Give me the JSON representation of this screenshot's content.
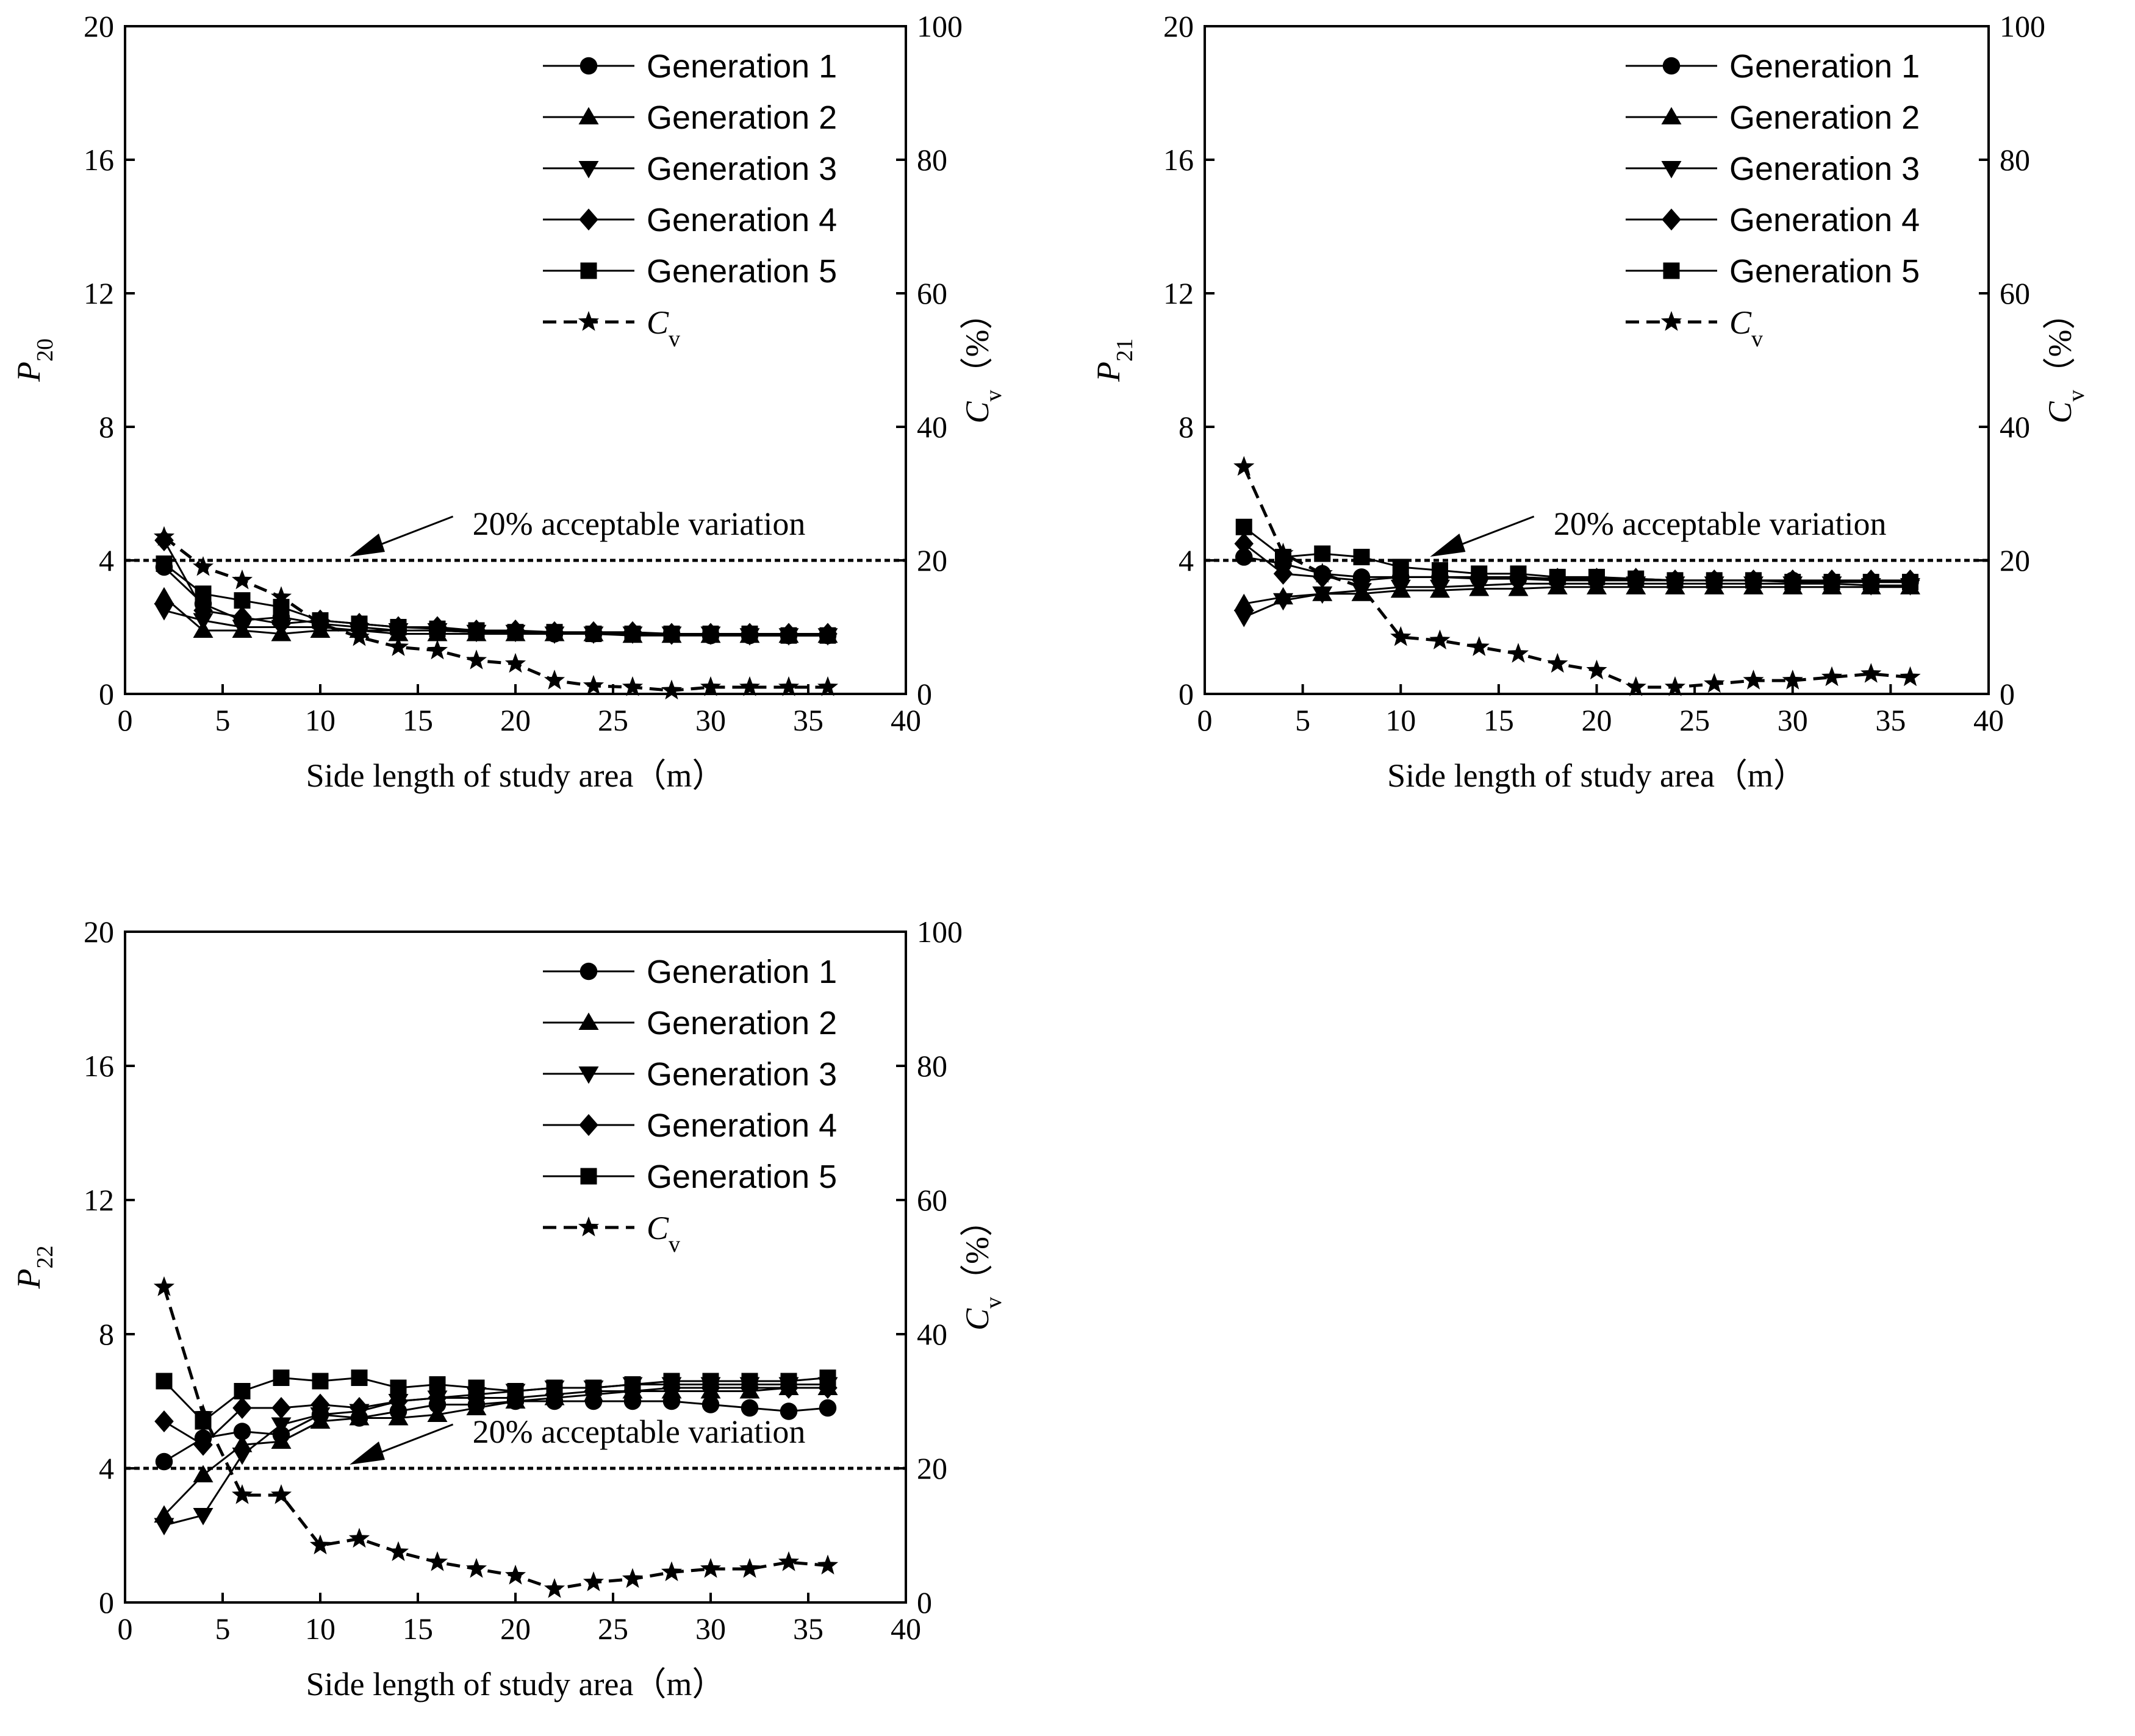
{
  "chart_data": [
    {
      "type": "line",
      "xlabel": "Side length of study area（m）",
      "ylabel": "P",
      "ylabel_sub": "20",
      "y2label": "C",
      "y2label_sub": "v",
      "y2label_unit": "（%）",
      "xlim": [
        0,
        40
      ],
      "ylim": [
        0,
        20
      ],
      "y2lim": [
        0,
        100
      ],
      "xticks": [
        "0",
        "5",
        "10",
        "15",
        "20",
        "25",
        "30",
        "35",
        "40"
      ],
      "yticks": [
        "0",
        "4",
        "8",
        "12",
        "16",
        "20"
      ],
      "y2ticks": [
        "0",
        "20",
        "40",
        "60",
        "80",
        "100"
      ],
      "threshold": 4,
      "annotation": "20%  acceptable variation",
      "legend_position": "top-right",
      "x": [
        2,
        4,
        6,
        8,
        10,
        12,
        14,
        16,
        18,
        20,
        22,
        24,
        26,
        28,
        30,
        32,
        34,
        36
      ],
      "series": [
        {
          "name": "Generation 1",
          "axis": "left",
          "marker": "circle",
          "dash": false,
          "values": [
            3.8,
            2.7,
            2.2,
            2.3,
            2.1,
            2.0,
            1.9,
            1.9,
            1.85,
            1.85,
            1.8,
            1.8,
            1.8,
            1.8,
            1.75,
            1.75,
            1.75,
            1.75
          ]
        },
        {
          "name": "Generation 2",
          "axis": "left",
          "marker": "triangle-up",
          "dash": false,
          "values": [
            2.9,
            1.9,
            1.9,
            1.8,
            1.9,
            1.9,
            1.8,
            1.8,
            1.8,
            1.8,
            1.8,
            1.8,
            1.75,
            1.75,
            1.75,
            1.75,
            1.75,
            1.75
          ]
        },
        {
          "name": "Generation 3",
          "axis": "left",
          "marker": "triangle-down",
          "dash": false,
          "values": [
            2.5,
            2.2,
            2.0,
            2.0,
            2.0,
            1.9,
            1.9,
            1.9,
            1.85,
            1.85,
            1.8,
            1.8,
            1.8,
            1.8,
            1.8,
            1.75,
            1.75,
            1.75
          ]
        },
        {
          "name": "Generation 4",
          "axis": "left",
          "marker": "diamond",
          "dash": false,
          "values": [
            4.6,
            2.5,
            2.3,
            2.1,
            2.2,
            2.1,
            2.0,
            2.0,
            1.9,
            1.9,
            1.85,
            1.85,
            1.85,
            1.8,
            1.8,
            1.8,
            1.8,
            1.8
          ]
        },
        {
          "name": "Generation 5",
          "axis": "left",
          "marker": "square",
          "dash": false,
          "values": [
            3.9,
            3.0,
            2.8,
            2.6,
            2.2,
            2.1,
            2.0,
            1.95,
            1.9,
            1.85,
            1.85,
            1.8,
            1.8,
            1.8,
            1.8,
            1.8,
            1.75,
            1.75
          ]
        },
        {
          "name": "C",
          "name_sub": "v",
          "axis": "right",
          "marker": "star",
          "dash": true,
          "values": [
            23.5,
            19.0,
            17.0,
            14.5,
            10.5,
            8.5,
            7.0,
            6.5,
            5.0,
            4.5,
            2.0,
            1.2,
            1.0,
            0.5,
            1.0,
            1.0,
            1.0,
            1.0
          ]
        }
      ]
    },
    {
      "type": "line",
      "xlabel": "Side length of study area（m）",
      "ylabel": "P",
      "ylabel_sub": "21",
      "y2label": "C",
      "y2label_sub": "v",
      "y2label_unit": "（%）",
      "xlim": [
        0,
        40
      ],
      "ylim": [
        0,
        20
      ],
      "y2lim": [
        0,
        100
      ],
      "xticks": [
        "0",
        "5",
        "10",
        "15",
        "20",
        "25",
        "30",
        "35",
        "40"
      ],
      "yticks": [
        "0",
        "4",
        "8",
        "12",
        "16",
        "20"
      ],
      "y2ticks": [
        "0",
        "20",
        "40",
        "60",
        "80",
        "100"
      ],
      "threshold": 4,
      "annotation": "20%  acceptable variation",
      "legend_position": "top-right",
      "x": [
        2,
        4,
        6,
        8,
        10,
        12,
        14,
        16,
        18,
        20,
        22,
        24,
        26,
        28,
        30,
        32,
        34,
        36
      ],
      "series": [
        {
          "name": "Generation 1",
          "axis": "left",
          "marker": "circle",
          "dash": false,
          "values": [
            4.1,
            3.9,
            3.6,
            3.5,
            3.5,
            3.5,
            3.45,
            3.45,
            3.4,
            3.4,
            3.4,
            3.4,
            3.4,
            3.4,
            3.4,
            3.35,
            3.35,
            3.35
          ]
        },
        {
          "name": "Generation 2",
          "axis": "left",
          "marker": "triangle-up",
          "dash": false,
          "values": [
            2.7,
            2.9,
            3.0,
            3.0,
            3.1,
            3.1,
            3.15,
            3.15,
            3.2,
            3.2,
            3.2,
            3.2,
            3.2,
            3.2,
            3.2,
            3.2,
            3.2,
            3.2
          ]
        },
        {
          "name": "Generation 3",
          "axis": "left",
          "marker": "triangle-down",
          "dash": false,
          "values": [
            2.3,
            2.8,
            3.0,
            3.1,
            3.2,
            3.2,
            3.25,
            3.3,
            3.3,
            3.3,
            3.3,
            3.3,
            3.3,
            3.3,
            3.3,
            3.3,
            3.25,
            3.25
          ]
        },
        {
          "name": "Generation 4",
          "axis": "left",
          "marker": "diamond",
          "dash": false,
          "values": [
            4.5,
            3.6,
            3.5,
            3.4,
            3.5,
            3.5,
            3.5,
            3.5,
            3.45,
            3.45,
            3.45,
            3.4,
            3.4,
            3.4,
            3.4,
            3.4,
            3.4,
            3.4
          ]
        },
        {
          "name": "Generation 5",
          "axis": "left",
          "marker": "square",
          "dash": false,
          "values": [
            5.0,
            4.1,
            4.2,
            4.1,
            3.8,
            3.7,
            3.6,
            3.6,
            3.5,
            3.5,
            3.45,
            3.4,
            3.4,
            3.4,
            3.35,
            3.35,
            3.35,
            3.35
          ]
        },
        {
          "name": "C",
          "name_sub": "v",
          "axis": "right",
          "marker": "star",
          "dash": true,
          "values": [
            34,
            21,
            18,
            16,
            8.5,
            8.0,
            7.0,
            6.0,
            4.5,
            3.5,
            1.0,
            1.0,
            1.5,
            2.0,
            2.0,
            2.5,
            3.0,
            2.5
          ]
        }
      ]
    },
    {
      "type": "line",
      "xlabel": "Side length of study area（m）",
      "ylabel": "P",
      "ylabel_sub": "22",
      "y2label": "C",
      "y2label_sub": "v",
      "y2label_unit": "（%）",
      "xlim": [
        0,
        40
      ],
      "ylim": [
        0,
        20
      ],
      "y2lim": [
        0,
        100
      ],
      "xticks": [
        "0",
        "5",
        "10",
        "15",
        "20",
        "25",
        "30",
        "35",
        "40"
      ],
      "yticks": [
        "0",
        "4",
        "8",
        "12",
        "16",
        "20"
      ],
      "y2ticks": [
        "0",
        "20",
        "40",
        "60",
        "80",
        "100"
      ],
      "threshold": 4,
      "annotation": "20%  acceptable variation",
      "legend_position": "top-right",
      "x": [
        2,
        4,
        6,
        8,
        10,
        12,
        14,
        16,
        18,
        20,
        22,
        24,
        26,
        28,
        30,
        32,
        34,
        36
      ],
      "series": [
        {
          "name": "Generation 1",
          "axis": "left",
          "marker": "circle",
          "dash": false,
          "values": [
            4.2,
            4.9,
            5.1,
            5.0,
            5.6,
            5.5,
            5.7,
            5.9,
            5.9,
            6.0,
            6.0,
            6.0,
            6.0,
            6.0,
            5.9,
            5.8,
            5.7,
            5.8
          ]
        },
        {
          "name": "Generation 2",
          "axis": "left",
          "marker": "triangle-up",
          "dash": false,
          "values": [
            2.6,
            3.8,
            4.7,
            4.8,
            5.4,
            5.5,
            5.5,
            5.6,
            5.8,
            6.0,
            6.1,
            6.2,
            6.3,
            6.3,
            6.3,
            6.3,
            6.4,
            6.4
          ]
        },
        {
          "name": "Generation 3",
          "axis": "left",
          "marker": "triangle-down",
          "dash": false,
          "values": [
            2.3,
            2.6,
            4.4,
            5.3,
            5.6,
            5.7,
            6.0,
            6.1,
            6.2,
            6.3,
            6.4,
            6.4,
            6.5,
            6.5,
            6.5,
            6.5,
            6.5,
            6.5
          ]
        },
        {
          "name": "Generation 4",
          "axis": "left",
          "marker": "diamond",
          "dash": false,
          "values": [
            5.4,
            4.7,
            5.8,
            5.8,
            5.9,
            5.8,
            6.0,
            6.1,
            6.1,
            6.1,
            6.2,
            6.3,
            6.3,
            6.4,
            6.4,
            6.4,
            6.4,
            6.4
          ]
        },
        {
          "name": "Generation 5",
          "axis": "left",
          "marker": "square",
          "dash": false,
          "values": [
            6.6,
            5.4,
            6.3,
            6.7,
            6.6,
            6.7,
            6.4,
            6.5,
            6.4,
            6.3,
            6.4,
            6.4,
            6.5,
            6.6,
            6.6,
            6.6,
            6.6,
            6.7
          ]
        },
        {
          "name": "C",
          "name_sub": "v",
          "axis": "right",
          "marker": "star",
          "dash": true,
          "values": [
            47,
            28,
            16,
            16,
            8.5,
            9.5,
            7.5,
            6.0,
            5.0,
            4.0,
            2.0,
            3.0,
            3.5,
            4.5,
            5.0,
            5.0,
            6.0,
            5.5
          ]
        }
      ]
    }
  ]
}
